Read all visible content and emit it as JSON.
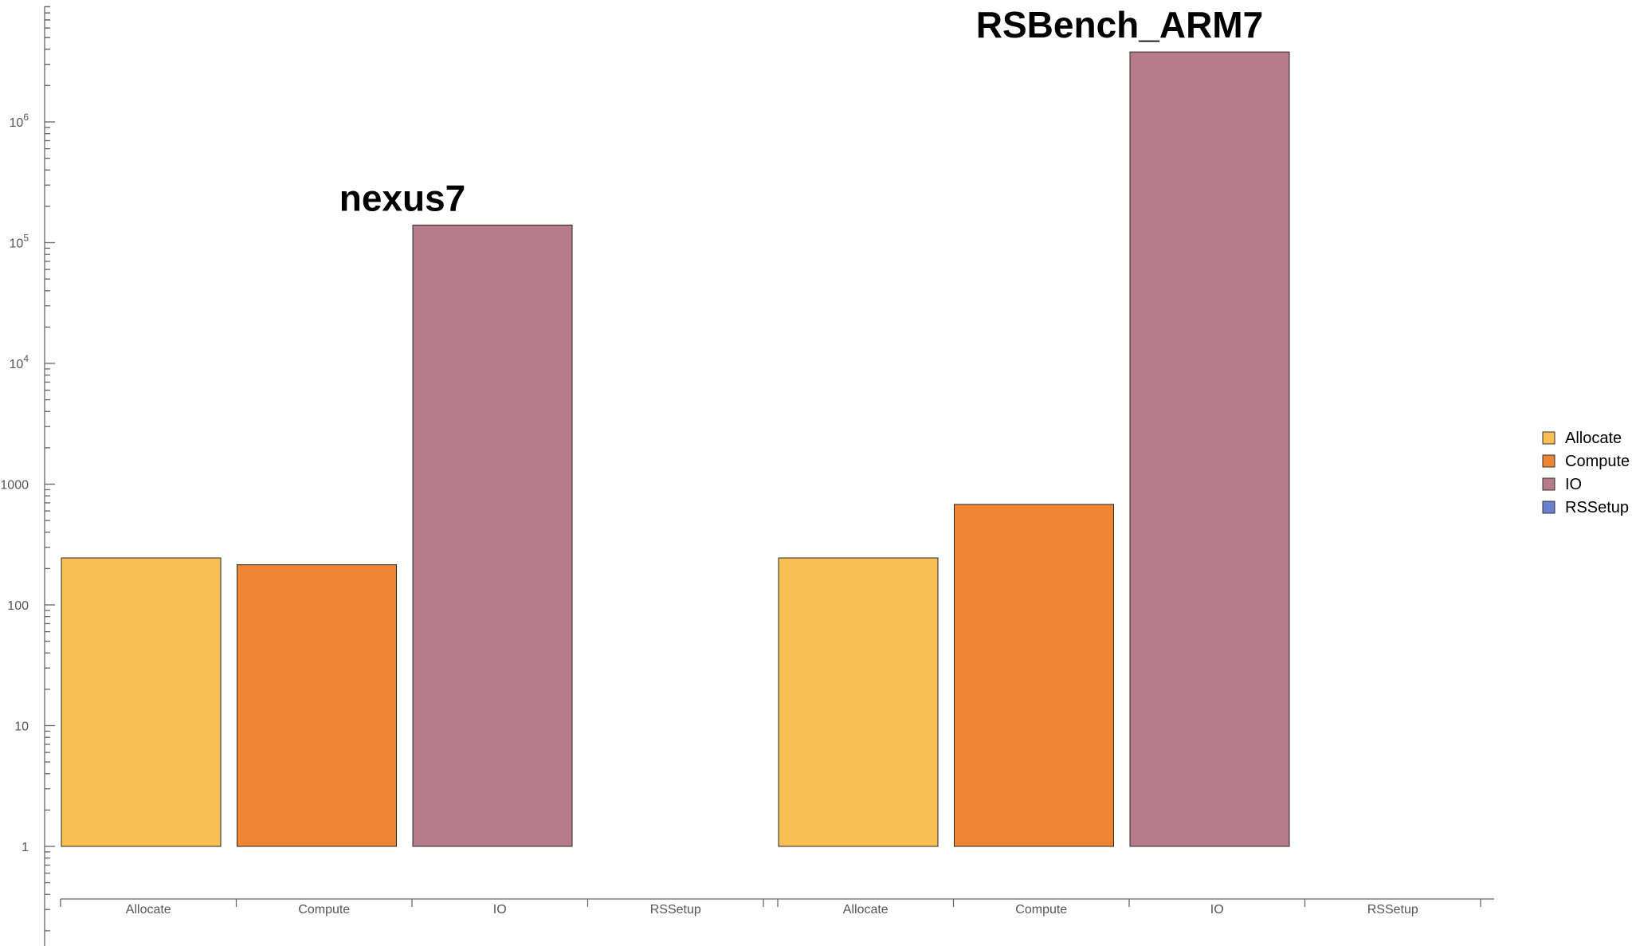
{
  "chart_data": {
    "type": "bar",
    "y_scale": "log",
    "ylim": [
      1,
      3800000
    ],
    "y_ticks": [
      {
        "value": 1,
        "label": "1"
      },
      {
        "value": 10,
        "label": "10"
      },
      {
        "value": 100,
        "label": "100"
      },
      {
        "value": 1000,
        "label": "1000"
      },
      {
        "value": 10000,
        "label": "10",
        "exp": "4"
      },
      {
        "value": 100000,
        "label": "10",
        "exp": "5"
      },
      {
        "value": 1000000,
        "label": "10",
        "exp": "6"
      }
    ],
    "categories": [
      "Allocate",
      "Compute",
      "IO",
      "RSSetup"
    ],
    "colors": {
      "Allocate": "#f9bf53",
      "Compute": "#ee8533",
      "IO": "#b57a8b",
      "RSSetup": "#6b7fd0"
    },
    "groups": [
      {
        "name": "nexus7",
        "values": [
          245,
          215,
          140000,
          null
        ]
      },
      {
        "name": "RSBench_ARM7",
        "values": [
          245,
          680,
          3800000,
          null
        ]
      }
    ],
    "legend": {
      "position": "right",
      "items": [
        "Allocate",
        "Compute",
        "IO",
        "RSSetup"
      ]
    }
  }
}
